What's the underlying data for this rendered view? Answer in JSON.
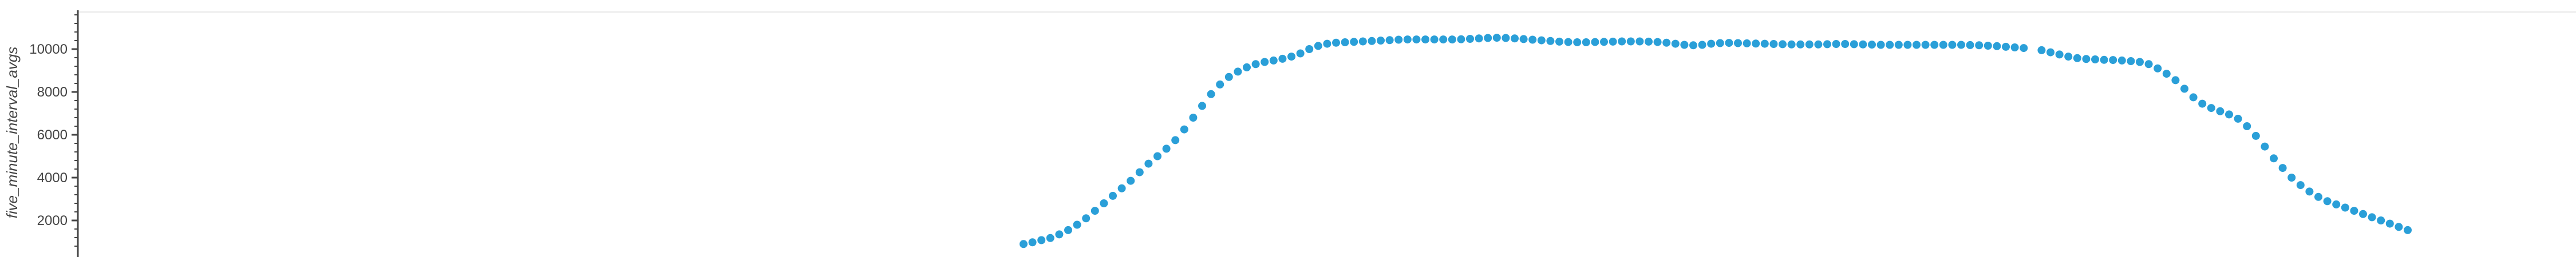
{
  "chart_data": {
    "type": "scatter",
    "title": "",
    "xlabel": "",
    "ylabel": "five_minute_interval_avgs",
    "ylim": [
      800,
      11600
    ],
    "yticks": [
      2000,
      4000,
      6000,
      8000,
      10000
    ],
    "ytick_labels": [
      "2000",
      "4000",
      "6000",
      "8000",
      "10000"
    ],
    "grid": false,
    "legend": "none",
    "marker_color": "#2a9fd8",
    "series": [
      {
        "values": [
          900,
          980,
          1080,
          1180,
          1350,
          1550,
          1800,
          2100,
          2450,
          2800,
          3150,
          3500,
          3850,
          4250,
          4650,
          5000,
          5350,
          5750,
          6250,
          6800,
          7350,
          7900,
          8350,
          8700,
          8950,
          9150,
          9300,
          9400,
          9470,
          9550,
          9650,
          9800,
          10000,
          10150,
          10250,
          10300,
          10320,
          10340,
          10360,
          10380,
          10400,
          10420,
          10440,
          10450,
          10450,
          10450,
          10450,
          10450,
          10450,
          10460,
          10480,
          10500,
          10520,
          10530,
          10520,
          10500,
          10470,
          10440,
          10410,
          10380,
          10350,
          10330,
          10320,
          10320,
          10330,
          10340,
          10350,
          10360,
          10360,
          10360,
          10350,
          10330,
          10300,
          10250,
          10200,
          10180,
          10200,
          10250,
          10280,
          10290,
          10280,
          10270,
          10260,
          10250,
          10240,
          10230,
          10220,
          10220,
          10220,
          10220,
          10230,
          10240,
          10240,
          10230,
          10220,
          10210,
          10200,
          10200,
          10200,
          10200,
          10200,
          10200,
          10200,
          10200,
          10200,
          10200,
          10190,
          10180,
          10160,
          10140,
          10110,
          10080,
          10050,
          null,
          9950,
          9850,
          9750,
          9650,
          9580,
          9540,
          9520,
          9500,
          9490,
          9470,
          9440,
          9400,
          9300,
          9100,
          8850,
          8550,
          8150,
          7750,
          7450,
          7250,
          7100,
          6950,
          6750,
          6400,
          5950,
          5450,
          4900,
          4450,
          4000,
          3650,
          3350,
          3100,
          2900,
          2750,
          2600,
          2450,
          2300,
          2150,
          2000,
          1850,
          1700,
          1550
        ]
      }
    ]
  }
}
